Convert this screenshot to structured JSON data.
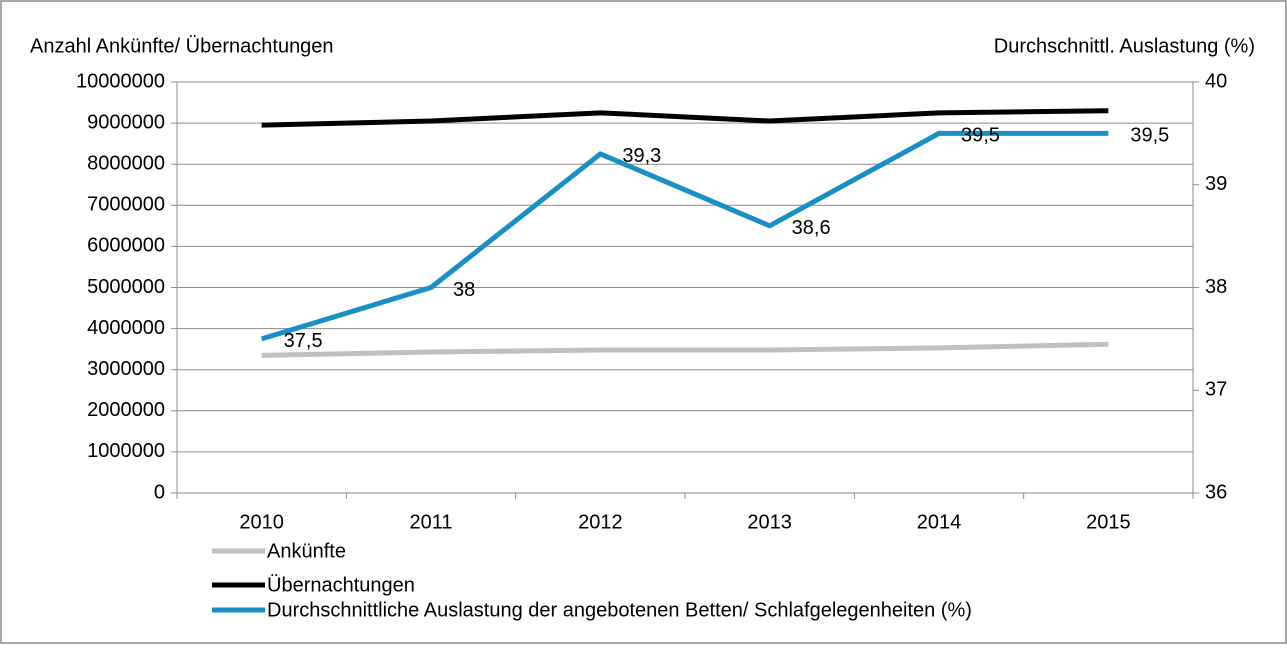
{
  "chart_data": {
    "type": "line",
    "y_label": "Anzahl Ankünfte/ Übernachtungen",
    "y2_label": "Durchschnittl. Auslastung (%)",
    "categories": [
      "2010",
      "2011",
      "2012",
      "2013",
      "2014",
      "2015"
    ],
    "series": [
      {
        "name": "Ankünfte",
        "color": "#bfbfbf",
        "values": [
          3350000,
          3430000,
          3480000,
          3480000,
          3530000,
          3620000
        ]
      },
      {
        "name": "Übernachtungen",
        "color": "#000000",
        "values": [
          8950000,
          9050000,
          9250000,
          9050000,
          9250000,
          9300000
        ]
      },
      {
        "name": "Durchschnittliche Auslastung der angebotenen Betten/ Schlafgelegenheiten (%)",
        "color": "#1a8fc4",
        "axis": "y2",
        "values": [
          37.5,
          38,
          39.3,
          38.6,
          39.5,
          39.5
        ],
        "value_labels": [
          "37,5",
          "38",
          "39,3",
          "38,6",
          "39,5",
          "39,5"
        ]
      }
    ],
    "ylim": [
      0,
      10000000
    ],
    "yticks": [
      0,
      1000000,
      2000000,
      3000000,
      4000000,
      5000000,
      6000000,
      7000000,
      8000000,
      9000000,
      10000000
    ],
    "y2lim": [
      36,
      40
    ],
    "y2ticks": [
      36,
      37,
      38,
      39,
      40
    ],
    "grid": true
  }
}
